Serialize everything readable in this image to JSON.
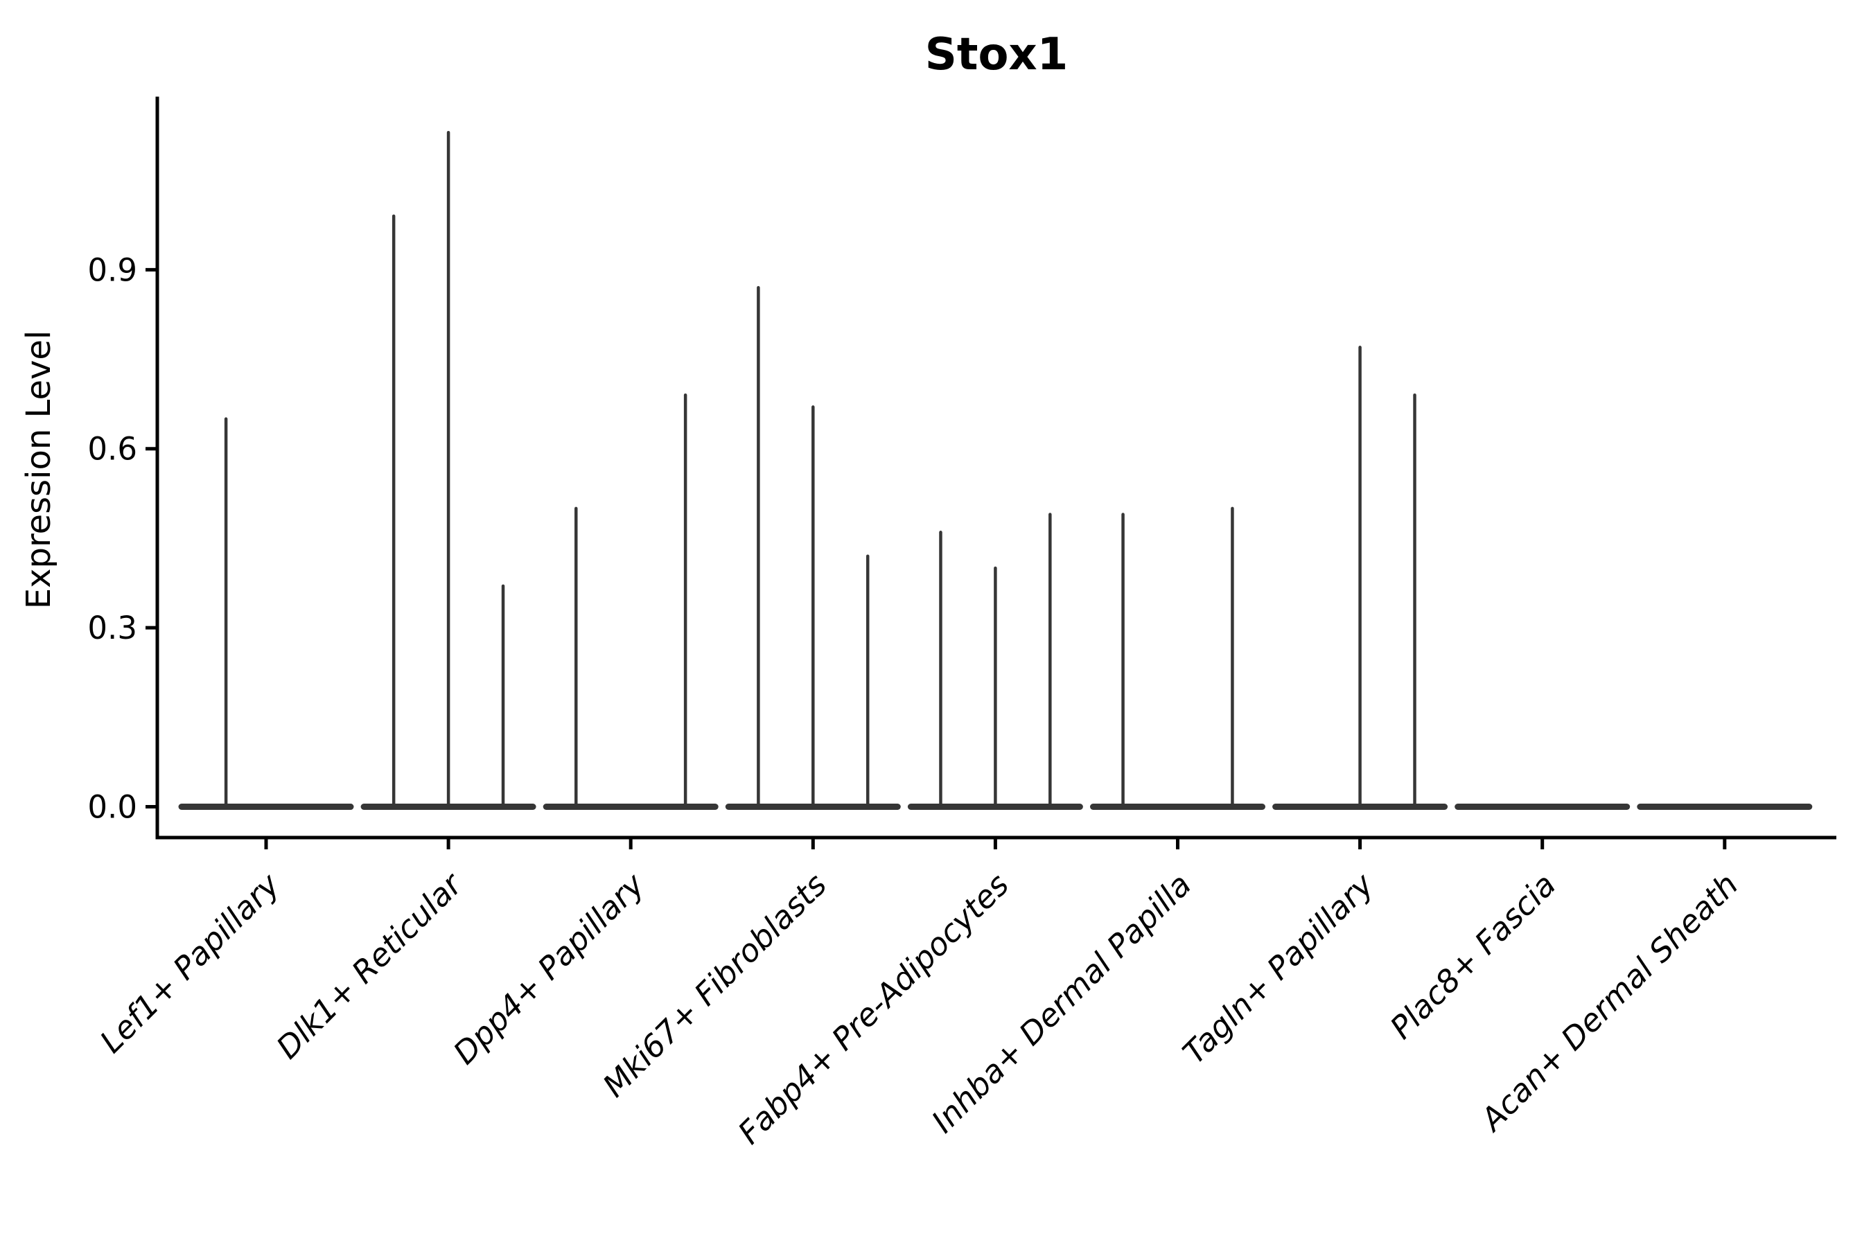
{
  "figure": {
    "background_color": "#ffffff",
    "axis_color": "#000000"
  },
  "chart_data": {
    "type": "violin",
    "title": "Stox1",
    "xlabel": "",
    "ylabel": "Expression Level",
    "ylim": [
      0.0,
      1.19
    ],
    "yticks": [
      0.0,
      0.3,
      0.6,
      0.9
    ],
    "ytick_labels": [
      "0.0",
      "0.3",
      "0.6",
      "0.9"
    ],
    "grid": false,
    "legend_position": "none",
    "violin_color": "#363636",
    "categories": [
      "Lef1+ Papillary",
      "Dlk1+ Reticular",
      "Dpp4+ Papillary",
      "Mki67+ Fibroblasts",
      "Fabp4+ Pre-Adipocytes",
      "Inhba+ Dermal Papilla",
      "Tagln+ Papillary",
      "Plac8+ Fascia",
      "Acan+ Dermal Sheath"
    ],
    "series": [
      {
        "category": "Lef1+ Papillary",
        "spikes": [
          {
            "offset": -0.22,
            "max": 0.65
          }
        ]
      },
      {
        "category": "Dlk1+ Reticular",
        "spikes": [
          {
            "offset": -0.3,
            "max": 0.99
          },
          {
            "offset": 0.0,
            "max": 1.13
          },
          {
            "offset": 0.3,
            "max": 0.37
          }
        ]
      },
      {
        "category": "Dpp4+ Papillary",
        "spikes": [
          {
            "offset": -0.3,
            "max": 0.5
          },
          {
            "offset": 0.3,
            "max": 0.69
          }
        ]
      },
      {
        "category": "Mki67+ Fibroblasts",
        "spikes": [
          {
            "offset": -0.3,
            "max": 0.87
          },
          {
            "offset": 0.0,
            "max": 0.67
          },
          {
            "offset": 0.3,
            "max": 0.42
          }
        ]
      },
      {
        "category": "Fabp4+ Pre-Adipocytes",
        "spikes": [
          {
            "offset": -0.3,
            "max": 0.46
          },
          {
            "offset": 0.0,
            "max": 0.4
          },
          {
            "offset": 0.3,
            "max": 0.49
          }
        ]
      },
      {
        "category": "Inhba+ Dermal Papilla",
        "spikes": [
          {
            "offset": -0.3,
            "max": 0.49
          },
          {
            "offset": 0.3,
            "max": 0.5
          }
        ]
      },
      {
        "category": "Tagln+ Papillary",
        "spikes": [
          {
            "offset": 0.0,
            "max": 0.77
          },
          {
            "offset": 0.3,
            "max": 0.69
          }
        ]
      },
      {
        "category": "Plac8+ Fascia",
        "spikes": []
      },
      {
        "category": "Acan+ Dermal Sheath",
        "spikes": []
      }
    ]
  }
}
